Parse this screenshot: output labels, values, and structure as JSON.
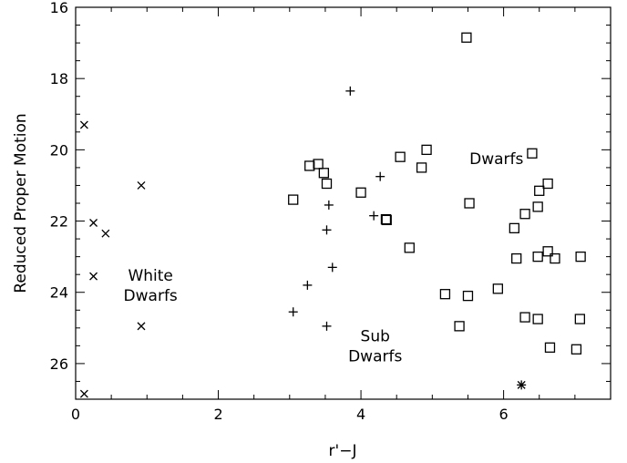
{
  "chart_data": {
    "type": "scatter",
    "title": "",
    "xlabel": "r'−J",
    "ylabel": "Reduced Proper Motion",
    "xlim": [
      0,
      7.5
    ],
    "ylim": [
      27,
      16
    ],
    "y_inverted": true,
    "xticks": [
      0,
      2,
      4,
      6
    ],
    "yticks": [
      16,
      18,
      20,
      22,
      24,
      26
    ],
    "grid": false,
    "legend": "none",
    "annotations": [
      {
        "lines": [
          "Dwarfs"
        ],
        "x": 5.9,
        "y": 20.25
      },
      {
        "lines": [
          "White",
          "Dwarfs"
        ],
        "x": 1.05,
        "y": 23.8
      },
      {
        "lines": [
          "Sub",
          "Dwarfs"
        ],
        "x": 4.2,
        "y": 25.5
      }
    ],
    "series": [
      {
        "marker": "x",
        "points": [
          [
            0.12,
            19.3
          ],
          [
            0.92,
            21.0
          ],
          [
            0.25,
            22.05
          ],
          [
            0.42,
            22.35
          ],
          [
            0.25,
            23.55
          ],
          [
            0.92,
            24.95
          ],
          [
            0.12,
            26.85
          ]
        ]
      },
      {
        "marker": "plus",
        "points": [
          [
            3.85,
            18.35
          ],
          [
            4.27,
            20.75
          ],
          [
            3.55,
            21.55
          ],
          [
            4.18,
            21.85
          ],
          [
            3.52,
            22.25
          ],
          [
            3.6,
            23.3
          ],
          [
            3.25,
            23.8
          ],
          [
            3.05,
            24.55
          ],
          [
            3.52,
            24.95
          ]
        ]
      },
      {
        "marker": "square",
        "points": [
          [
            5.48,
            16.85
          ],
          [
            4.92,
            20.0
          ],
          [
            4.55,
            20.2
          ],
          [
            4.85,
            20.5
          ],
          [
            6.4,
            20.1
          ],
          [
            3.28,
            20.45
          ],
          [
            3.4,
            20.4
          ],
          [
            3.48,
            20.65
          ],
          [
            3.52,
            20.95
          ],
          [
            6.62,
            20.95
          ],
          [
            6.5,
            21.15
          ],
          [
            3.05,
            21.4
          ],
          [
            4.0,
            21.2
          ],
          [
            5.52,
            21.5
          ],
          [
            6.48,
            21.6
          ],
          [
            6.3,
            21.8
          ],
          [
            4.35,
            21.95
          ],
          [
            4.36,
            21.97
          ],
          [
            6.15,
            22.2
          ],
          [
            4.68,
            22.75
          ],
          [
            6.62,
            22.85
          ],
          [
            6.18,
            23.05
          ],
          [
            6.48,
            23.0
          ],
          [
            6.72,
            23.05
          ],
          [
            7.08,
            23.0
          ],
          [
            5.92,
            23.9
          ],
          [
            5.18,
            24.05
          ],
          [
            5.5,
            24.1
          ],
          [
            5.38,
            24.95
          ],
          [
            6.3,
            24.7
          ],
          [
            6.48,
            24.75
          ],
          [
            7.07,
            24.75
          ],
          [
            6.65,
            25.55
          ],
          [
            7.02,
            25.6
          ]
        ]
      },
      {
        "marker": "asterisk",
        "points": [
          [
            6.25,
            26.6
          ]
        ]
      }
    ]
  }
}
